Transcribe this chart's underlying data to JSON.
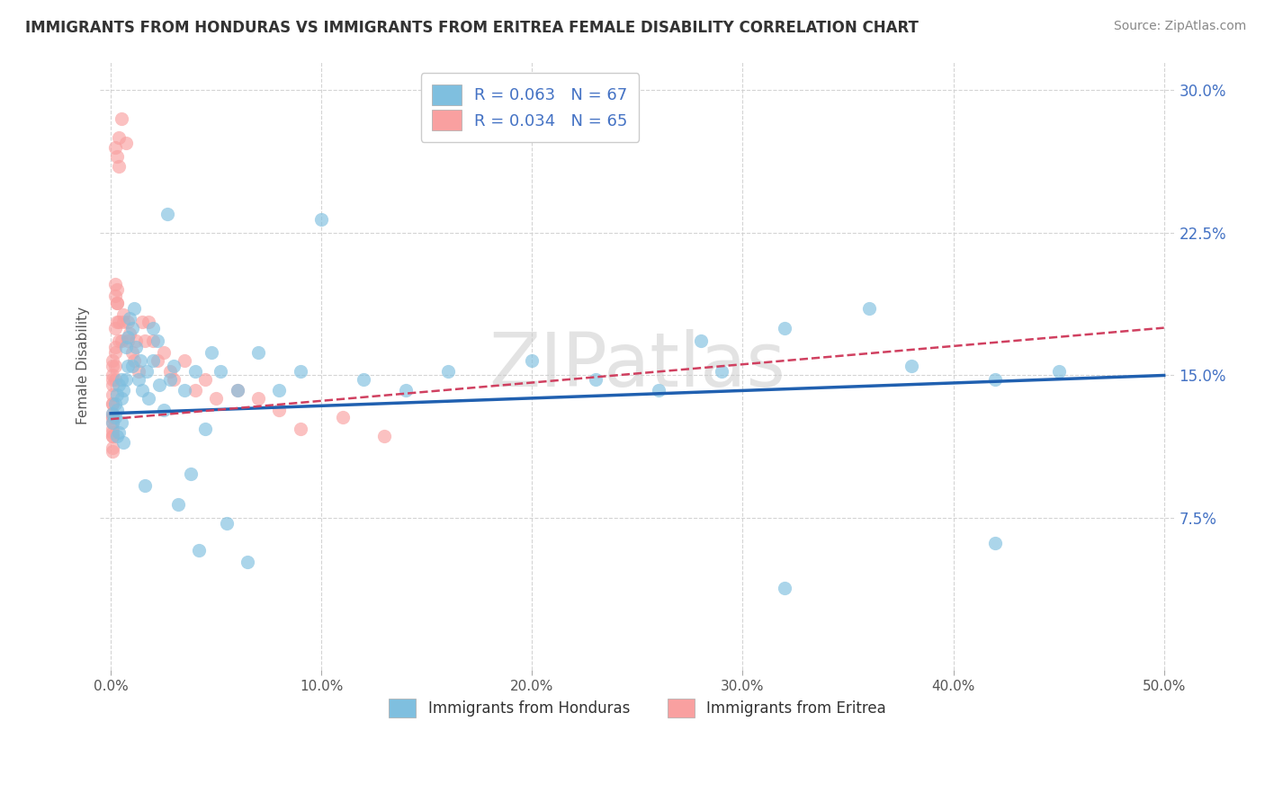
{
  "title": "IMMIGRANTS FROM HONDURAS VS IMMIGRANTS FROM ERITREA FEMALE DISABILITY CORRELATION CHART",
  "source": "Source: ZipAtlas.com",
  "ylabel": "Female Disability",
  "xlim": [
    -0.005,
    0.505
  ],
  "ylim": [
    -0.005,
    0.315
  ],
  "xticks": [
    0.0,
    0.1,
    0.2,
    0.3,
    0.4,
    0.5
  ],
  "xtick_labels": [
    "0.0%",
    "10.0%",
    "20.0%",
    "30.0%",
    "40.0%",
    "50.0%"
  ],
  "yticks": [
    0.075,
    0.15,
    0.225,
    0.3
  ],
  "ytick_labels": [
    "7.5%",
    "15.0%",
    "22.5%",
    "30.0%"
  ],
  "honduras_color": "#7fbfdf",
  "eritrea_color": "#f9a0a0",
  "honduras_line_color": "#2060b0",
  "eritrea_line_color": "#d04060",
  "honduras_R": 0.063,
  "honduras_N": 67,
  "eritrea_R": 0.034,
  "eritrea_N": 65,
  "legend_label_honduras": "Immigrants from Honduras",
  "legend_label_eritrea": "Immigrants from Eritrea",
  "watermark": "ZIPatlas",
  "background_color": "#ffffff",
  "grid_color": "#d0d0d0",
  "title_fontsize": 12,
  "source_fontsize": 10,
  "tick_fontsize": 11,
  "legend_fontsize": 13,
  "honduras_trend_x0": 0.0,
  "honduras_trend_y0": 0.13,
  "honduras_trend_x1": 0.5,
  "honduras_trend_y1": 0.15,
  "eritrea_trend_x0": 0.0,
  "eritrea_trend_y0": 0.127,
  "eritrea_trend_x1": 0.5,
  "eritrea_trend_y1": 0.175,
  "honduras_x": [
    0.001,
    0.001,
    0.002,
    0.002,
    0.003,
    0.003,
    0.003,
    0.004,
    0.004,
    0.005,
    0.005,
    0.005,
    0.006,
    0.006,
    0.007,
    0.007,
    0.008,
    0.008,
    0.009,
    0.01,
    0.01,
    0.011,
    0.012,
    0.013,
    0.014,
    0.015,
    0.016,
    0.017,
    0.018,
    0.02,
    0.02,
    0.022,
    0.023,
    0.025,
    0.027,
    0.028,
    0.03,
    0.032,
    0.035,
    0.038,
    0.04,
    0.042,
    0.045,
    0.048,
    0.052,
    0.055,
    0.06,
    0.065,
    0.07,
    0.08,
    0.09,
    0.1,
    0.12,
    0.14,
    0.16,
    0.2,
    0.23,
    0.26,
    0.29,
    0.32,
    0.38,
    0.42,
    0.45,
    0.28,
    0.32,
    0.36,
    0.42
  ],
  "honduras_y": [
    0.13,
    0.125,
    0.135,
    0.128,
    0.14,
    0.132,
    0.118,
    0.145,
    0.12,
    0.138,
    0.125,
    0.148,
    0.142,
    0.115,
    0.165,
    0.148,
    0.17,
    0.155,
    0.18,
    0.175,
    0.155,
    0.185,
    0.165,
    0.148,
    0.158,
    0.142,
    0.092,
    0.152,
    0.138,
    0.158,
    0.175,
    0.168,
    0.145,
    0.132,
    0.235,
    0.148,
    0.155,
    0.082,
    0.142,
    0.098,
    0.152,
    0.058,
    0.122,
    0.162,
    0.152,
    0.072,
    0.142,
    0.052,
    0.162,
    0.142,
    0.152,
    0.232,
    0.148,
    0.142,
    0.152,
    0.158,
    0.148,
    0.142,
    0.152,
    0.038,
    0.155,
    0.062,
    0.152,
    0.168,
    0.175,
    0.185,
    0.148
  ],
  "eritrea_x": [
    0.001,
    0.001,
    0.001,
    0.001,
    0.001,
    0.001,
    0.001,
    0.001,
    0.001,
    0.001,
    0.001,
    0.001,
    0.001,
    0.001,
    0.001,
    0.001,
    0.001,
    0.001,
    0.002,
    0.002,
    0.002,
    0.002,
    0.002,
    0.002,
    0.002,
    0.003,
    0.003,
    0.003,
    0.003,
    0.004,
    0.004,
    0.004,
    0.005,
    0.005,
    0.006,
    0.006,
    0.007,
    0.008,
    0.008,
    0.009,
    0.01,
    0.011,
    0.012,
    0.013,
    0.015,
    0.016,
    0.018,
    0.02,
    0.022,
    0.025,
    0.028,
    0.03,
    0.035,
    0.04,
    0.045,
    0.05,
    0.06,
    0.07,
    0.08,
    0.09,
    0.11,
    0.13,
    0.002,
    0.003,
    0.004
  ],
  "eritrea_y": [
    0.13,
    0.135,
    0.125,
    0.14,
    0.12,
    0.118,
    0.128,
    0.145,
    0.112,
    0.15,
    0.122,
    0.11,
    0.118,
    0.135,
    0.128,
    0.158,
    0.155,
    0.148,
    0.155,
    0.165,
    0.148,
    0.175,
    0.162,
    0.198,
    0.192,
    0.188,
    0.178,
    0.195,
    0.188,
    0.178,
    0.168,
    0.275,
    0.168,
    0.285,
    0.182,
    0.178,
    0.272,
    0.178,
    0.168,
    0.172,
    0.162,
    0.158,
    0.168,
    0.152,
    0.178,
    0.168,
    0.178,
    0.168,
    0.158,
    0.162,
    0.152,
    0.148,
    0.158,
    0.142,
    0.148,
    0.138,
    0.142,
    0.138,
    0.132,
    0.122,
    0.128,
    0.118,
    0.27,
    0.265,
    0.26
  ]
}
